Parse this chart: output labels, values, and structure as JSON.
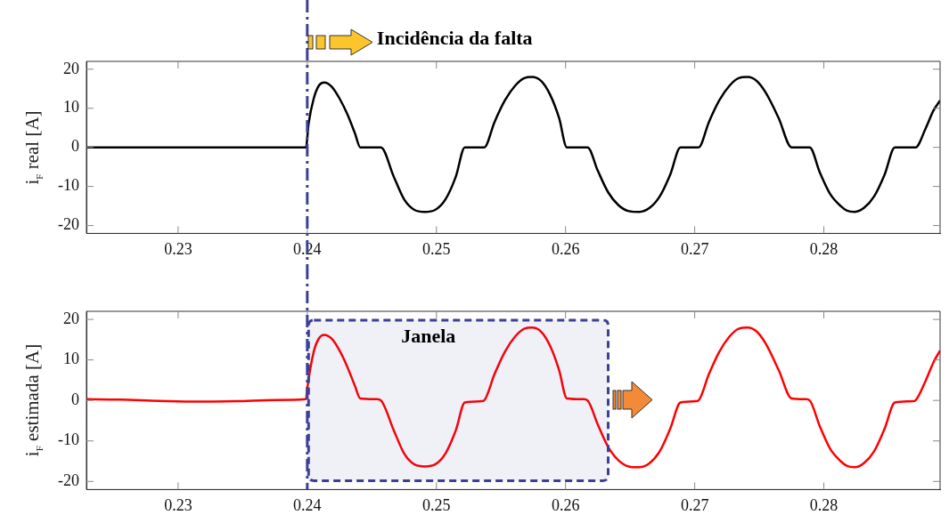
{
  "chart_data": [
    {
      "type": "line",
      "ylabel": "i$_{F}$ real [A]",
      "xlim": [
        0.2229,
        0.289
      ],
      "ylim": [
        -22,
        22
      ],
      "xticks": [
        0.23,
        0.24,
        0.25,
        0.26,
        0.27,
        0.28
      ],
      "yticks": [
        -20,
        -10,
        0,
        10,
        20
      ],
      "marker": "none",
      "line_style": "solid",
      "series": [
        {
          "color": "#000000",
          "x": [
            0.2229,
            0.2399,
            0.2401,
            0.2405,
            0.2409,
            0.2413,
            0.2419,
            0.2425,
            0.2431,
            0.2437,
            0.2441,
            0.2457,
            0.2467,
            0.2475,
            0.2483,
            0.2491,
            0.2499,
            0.2507,
            0.2515,
            0.2522,
            0.2537,
            0.2545,
            0.2553,
            0.2561,
            0.2568,
            0.2574,
            0.2581,
            0.2588,
            0.2595,
            0.2601,
            0.2617,
            0.2625,
            0.2633,
            0.2641,
            0.2649,
            0.2657,
            0.2665,
            0.2673,
            0.2681,
            0.2689,
            0.2703,
            0.2711,
            0.2719,
            0.2727,
            0.2734,
            0.2741,
            0.2748,
            0.2755,
            0.2765,
            0.2775,
            0.2789,
            0.2797,
            0.2805,
            0.2813,
            0.2818,
            0.2824,
            0.2831,
            0.2839,
            0.2847,
            0.2855,
            0.2871,
            0.2879,
            0.2885,
            0.289
          ],
          "values": [
            0,
            0,
            6,
            12.5,
            15.8,
            16.6,
            15.5,
            12.5,
            8.5,
            3.5,
            0,
            0,
            -7.5,
            -13.3,
            -16,
            -16.5,
            -16,
            -13.3,
            -7.5,
            0,
            0,
            6.5,
            12,
            15.8,
            17.7,
            18,
            17,
            13.5,
            7.5,
            0,
            0,
            -6,
            -11.5,
            -14.8,
            -16.3,
            -16.5,
            -15.5,
            -12.5,
            -7,
            0,
            0,
            6.5,
            12,
            15.8,
            17.7,
            18,
            17,
            14,
            7.5,
            0,
            0,
            -6.5,
            -12,
            -15,
            -16.2,
            -16.5,
            -15.5,
            -12.5,
            -7,
            0,
            0,
            5,
            9.5,
            12
          ]
        }
      ],
      "annotations": [
        "Incidência da falta"
      ],
      "ref_lines": [
        {
          "axis": "x",
          "value": 0.24,
          "color": "#3b3f98",
          "line_style": "dashdot"
        }
      ]
    },
    {
      "type": "line",
      "ylabel": "i$_{F}$ estimada [A]",
      "xlim": [
        0.2229,
        0.289
      ],
      "ylim": [
        -22,
        22
      ],
      "xticks": [
        0.23,
        0.24,
        0.25,
        0.26,
        0.27,
        0.28
      ],
      "yticks": [
        -20,
        -10,
        0,
        10,
        20
      ],
      "marker": "none",
      "line_style": "solid",
      "series": [
        {
          "color": "#ff0000",
          "x": [
            0.2229,
            0.2255,
            0.2285,
            0.2315,
            0.2345,
            0.2375,
            0.2399,
            0.24,
            0.2405,
            0.2409,
            0.2413,
            0.2419,
            0.2425,
            0.2431,
            0.2437,
            0.2441,
            0.2454,
            0.2457,
            0.2467,
            0.2475,
            0.2483,
            0.2491,
            0.2499,
            0.2507,
            0.2515,
            0.2522,
            0.2535,
            0.2537,
            0.2545,
            0.2553,
            0.2561,
            0.2568,
            0.2574,
            0.2581,
            0.2588,
            0.2595,
            0.2601,
            0.2614,
            0.2617,
            0.2625,
            0.2633,
            0.2641,
            0.2649,
            0.2657,
            0.2665,
            0.2673,
            0.2681,
            0.2689,
            0.2701,
            0.2703,
            0.2711,
            0.2719,
            0.2727,
            0.2734,
            0.2741,
            0.2748,
            0.2755,
            0.2765,
            0.2775,
            0.2786,
            0.2789,
            0.2797,
            0.2805,
            0.2813,
            0.2818,
            0.2824,
            0.2831,
            0.2839,
            0.2847,
            0.2855,
            0.2869,
            0.2871,
            0.2879,
            0.2885,
            0.289
          ],
          "values": [
            0.3,
            0.2,
            -0.1,
            -0.3,
            -0.2,
            0.1,
            0.3,
            3,
            12,
            15.3,
            16.2,
            15.2,
            12.3,
            8.3,
            3.5,
            0.5,
            0.3,
            0,
            -7.4,
            -13.1,
            -15.8,
            -16.3,
            -15.8,
            -13.1,
            -7.4,
            -0.5,
            -0.2,
            0,
            6.5,
            12,
            15.8,
            17.7,
            18,
            17,
            13.5,
            7.5,
            0.5,
            0.3,
            0,
            -6,
            -11.5,
            -14.8,
            -16.3,
            -16.5,
            -15.5,
            -12.5,
            -7,
            -0.5,
            -0.2,
            0,
            6.5,
            12,
            15.8,
            17.7,
            18,
            17,
            14,
            7.5,
            0.5,
            0.3,
            0,
            -6.5,
            -12,
            -15,
            -16.2,
            -16.5,
            -15.5,
            -12.5,
            -7,
            -0.5,
            -0.2,
            0,
            5,
            9.5,
            12.3
          ]
        }
      ],
      "ref_lines": [
        {
          "axis": "x",
          "value": 0.24,
          "color": "#3b3f98",
          "line_style": "dashdot"
        }
      ],
      "bands": [
        {
          "axis": "x",
          "from": 0.2401,
          "to": 0.2633,
          "label": "Janela",
          "color": "#3b3f98"
        }
      ]
    }
  ]
}
